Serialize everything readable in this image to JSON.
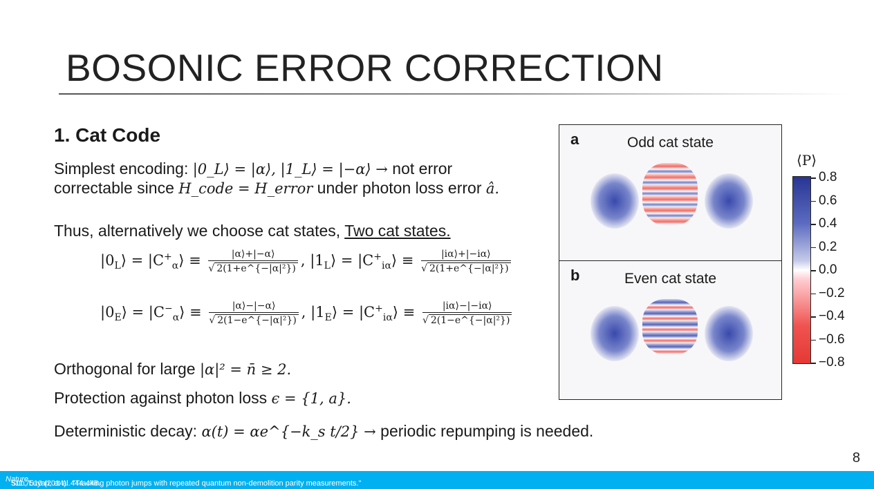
{
  "slide": {
    "title": "BOSONIC ERROR CORRECTION",
    "page_number": "8",
    "section": "1. Cat Code",
    "line1_pre": "Simplest encoding: ",
    "line1_math": "|0_L⟩ = |α⟩, |1_L⟩ = |−α⟩ →",
    "line1_post": " not error",
    "line2_pre": "correctable since ",
    "line2_math": "H_code = H_error",
    "line2_post": " under photon loss error ",
    "line2_math2": "â.",
    "line3_pre": "Thus, alternatively we choose cat states, ",
    "line3_link": "Two cat states.",
    "orthogonal_pre": "Orthogonal for large ",
    "orthogonal_math": "|α|² = n̄ ≥ 2.",
    "protection_pre": "Protection against photon loss ",
    "protection_math": "ϵ = {1, a}.",
    "decay_pre": "Deterministic decay: ",
    "decay_math": "α(t) = αe^{−k_s t/2} →",
    "decay_post": " periodic repumping is needed.",
    "footer_pre": "Sun, Luyan, et al. \"Tracking photon jumps with repeated quantum non-demolition parity measurements.\" ",
    "footer_journal": "Nature",
    "footer_post": " 511.7510 (2014): 444-448."
  },
  "equations": {
    "e1_lhs": "|0",
    "e1_lsub": "L",
    "e1_mid": "⟩ = |C",
    "e1_csub": "α",
    "e1_csup": "+",
    "e1_num": "|α⟩+|−α⟩",
    "e1_den": "2(1+e^{−|α|²})",
    "e2_lhs": "|1",
    "e2_lsub": "L",
    "e2_csub": "iα",
    "e2_csup": "+",
    "e2_num": "|iα⟩+|−iα⟩",
    "e2_den": "2(1+e^{−|α|²})",
    "e3_lhs": "|0",
    "e3_lsub": "E",
    "e3_csub": "α",
    "e3_csup": "−",
    "e3_num": "|α⟩−|−α⟩",
    "e3_den": "2(1−e^{−|α|²})",
    "e4_lhs": "|1",
    "e4_lsub": "E",
    "e4_csub": "iα",
    "e4_csup": "+",
    "e4_num": "|iα⟩−|−iα⟩",
    "e4_den": "2(1−e^{−|α|²})",
    "equiv": "⟩ ≡",
    "comma": ","
  },
  "figure": {
    "panel_a_letter": "a",
    "panel_a_title": "Odd cat state",
    "panel_b_letter": "b",
    "panel_b_title": "Even cat state",
    "colorbar_label": "⟨P⟩",
    "colorbar_ticks": [
      "0.8",
      "0.6",
      "0.4",
      "0.2",
      "0.0",
      "−0.2",
      "−0.4",
      "−0.6",
      "−0.8"
    ],
    "colors": {
      "positive": "#283593",
      "negative": "#e53935",
      "zero": "#ffffff",
      "bar": "#00b0f0"
    }
  }
}
